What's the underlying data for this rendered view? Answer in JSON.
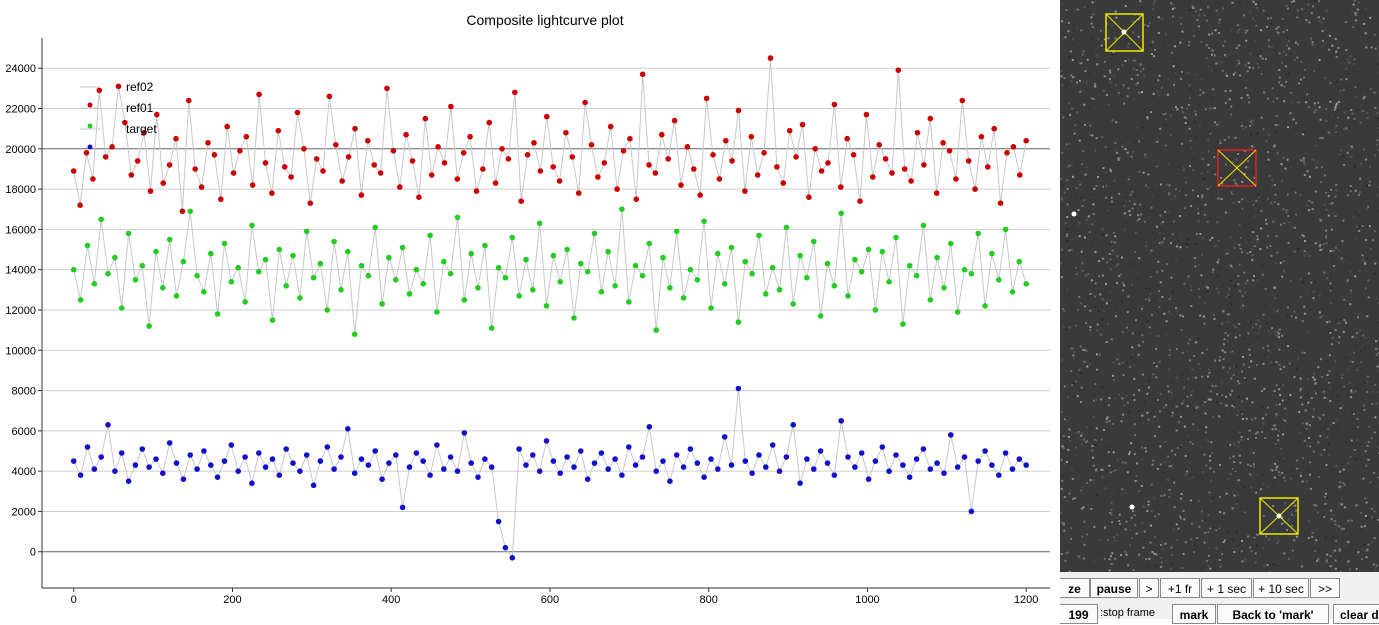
{
  "chart_data": {
    "type": "scatter",
    "title": "Composite lightcurve plot",
    "xlabel": "",
    "ylabel": "",
    "xlim": [
      -40,
      1230
    ],
    "ylim": [
      -1800,
      25500
    ],
    "x_ticks": [
      0,
      200,
      400,
      600,
      800,
      1000,
      1200
    ],
    "y_ticks": [
      0,
      2000,
      4000,
      6000,
      8000,
      10000,
      12000,
      14000,
      16000,
      18000,
      20000,
      22000,
      24000
    ],
    "grid": true,
    "legend_position": "top-left",
    "series": [
      {
        "name": "ref02",
        "color": "#cc0000",
        "values": [
          18900,
          17200,
          19800,
          18500,
          22900,
          19600,
          20100,
          23100,
          21300,
          18700,
          19400,
          20800,
          17900,
          21700,
          18300,
          19200,
          20500,
          16900,
          22400,
          19000,
          18100,
          20300,
          19700,
          17500,
          21100,
          18800,
          19900,
          20600,
          18200,
          22700,
          19300,
          17800,
          20900,
          19100,
          18600,
          21800,
          20000,
          17300,
          19500,
          18900,
          22600,
          20200,
          18400,
          19600,
          21000,
          17700,
          20400,
          19200,
          18800,
          23000,
          19900,
          18100,
          20700,
          19400,
          17600,
          21500,
          18700,
          20100,
          19300,
          22100,
          18500,
          19800,
          20600,
          17900,
          19000,
          21300,
          18300,
          20000,
          19500,
          22800,
          17400,
          19700,
          20300,
          18900,
          21600,
          19100,
          18400,
          20800,
          19600,
          17800,
          22300,
          20200,
          18600,
          19300,
          21100,
          18000,
          19900,
          20500,
          17500,
          23700,
          19200,
          18800,
          20700,
          19500,
          21400,
          18200,
          20100,
          19000,
          17700,
          22500,
          19700,
          18500,
          20400,
          19400,
          21900,
          17900,
          20600,
          18700,
          19800,
          24500,
          19100,
          18300,
          20900,
          19600,
          21200,
          17600,
          20000,
          18900,
          19300,
          22200,
          18100,
          20500,
          19700,
          17400,
          21700,
          18600,
          20200,
          19500,
          18800,
          23900,
          19000,
          18400,
          20800,
          19200,
          21500,
          17800,
          20300,
          19900,
          18500,
          22400,
          19400,
          18000,
          20600,
          19100,
          21000,
          17300,
          19800,
          20100,
          18700,
          20400
        ]
      },
      {
        "name": "ref01",
        "color": "#22cc22",
        "values": [
          14000,
          12500,
          15200,
          13300,
          16500,
          13800,
          14600,
          12100,
          15800,
          13500,
          14200,
          11200,
          14900,
          13100,
          15500,
          12700,
          14400,
          16900,
          13700,
          12900,
          14800,
          11800,
          15300,
          13400,
          14100,
          12400,
          16200,
          13900,
          14500,
          11500,
          15000,
          13200,
          14700,
          12600,
          15900,
          13600,
          14300,
          12000,
          15400,
          13000,
          14900,
          10800,
          14200,
          13700,
          16100,
          12300,
          14600,
          13500,
          15100,
          12800,
          14000,
          13300,
          15700,
          11900,
          14400,
          13800,
          16600,
          12500,
          14800,
          13100,
          15200,
          11100,
          14100,
          13600,
          15600,
          12700,
          14500,
          13000,
          16300,
          12200,
          14700,
          13400,
          15000,
          11600,
          14300,
          13900,
          15800,
          12900,
          14900,
          13200,
          17000,
          12400,
          14200,
          13700,
          15300,
          11000,
          14600,
          13100,
          15900,
          12600,
          14000,
          13500,
          16400,
          12100,
          14800,
          13300,
          15100,
          11400,
          14400,
          13800,
          15700,
          12800,
          14100,
          13000,
          16100,
          12300,
          14700,
          13600,
          15400,
          11700,
          14300,
          13200,
          16800,
          12700,
          14500,
          13900,
          15000,
          12000,
          14900,
          13400,
          15600,
          11300,
          14200,
          13700,
          16200,
          12500,
          14600,
          13100,
          15300,
          11900,
          14000,
          13800,
          15800,
          12200,
          14800,
          13500,
          16000,
          12900,
          14400,
          13300
        ]
      },
      {
        "name": "target",
        "color": "#1111cc",
        "values": [
          4500,
          3800,
          5200,
          4100,
          4700,
          6300,
          4000,
          4900,
          3500,
          4300,
          5100,
          4200,
          4600,
          3900,
          5400,
          4400,
          3600,
          4800,
          4100,
          5000,
          4300,
          3700,
          4500,
          5300,
          4000,
          4700,
          3400,
          4900,
          4200,
          4600,
          3800,
          5100,
          4400,
          4000,
          4800,
          3300,
          4500,
          5200,
          4100,
          4700,
          6100,
          3900,
          4600,
          4300,
          5000,
          3600,
          4400,
          4800,
          2200,
          4200,
          4900,
          4500,
          3800,
          5300,
          4100,
          4700,
          4000,
          5900,
          4400,
          3700,
          4600,
          4200,
          1500,
          200,
          -300,
          5100,
          4300,
          4800,
          4000,
          5500,
          4500,
          3900,
          4700,
          4200,
          5000,
          3600,
          4400,
          4900,
          4100,
          4600,
          3800,
          5200,
          4300,
          4700,
          6200,
          4000,
          4500,
          3500,
          4800,
          4200,
          5100,
          4400,
          3700,
          4600,
          4100,
          5700,
          4300,
          8100,
          4500,
          3900,
          4800,
          4200,
          5300,
          4000,
          4700,
          6300,
          3400,
          4600,
          4100,
          5000,
          4400,
          3800,
          6500,
          4700,
          4200,
          4900,
          3600,
          4500,
          5200,
          4000,
          4800,
          4300,
          3700,
          4600,
          5100,
          4100,
          4400,
          3900,
          5800,
          4200,
          4700,
          2000,
          4500,
          5000,
          4300,
          3800,
          4900,
          4100,
          4600,
          4300
        ]
      }
    ]
  },
  "image_panel": {
    "background": "#3a3a3a",
    "markers": [
      {
        "color": "#f0e800",
        "kind": "ref02"
      },
      {
        "color": "#e02020",
        "kind": "target"
      },
      {
        "color": "#f0e800",
        "kind": "ref01"
      }
    ]
  },
  "controls": {
    "row1": [
      "ze",
      "pause",
      ">",
      "+1 fr",
      "+ 1 sec",
      "+ 10 sec",
      ">>"
    ],
    "frame_value": "199",
    "stop_frame_label": ":stop frame",
    "mark_label": "mark",
    "back_to_mark_label": "Back to 'mark'",
    "clear_label": "clear d"
  }
}
